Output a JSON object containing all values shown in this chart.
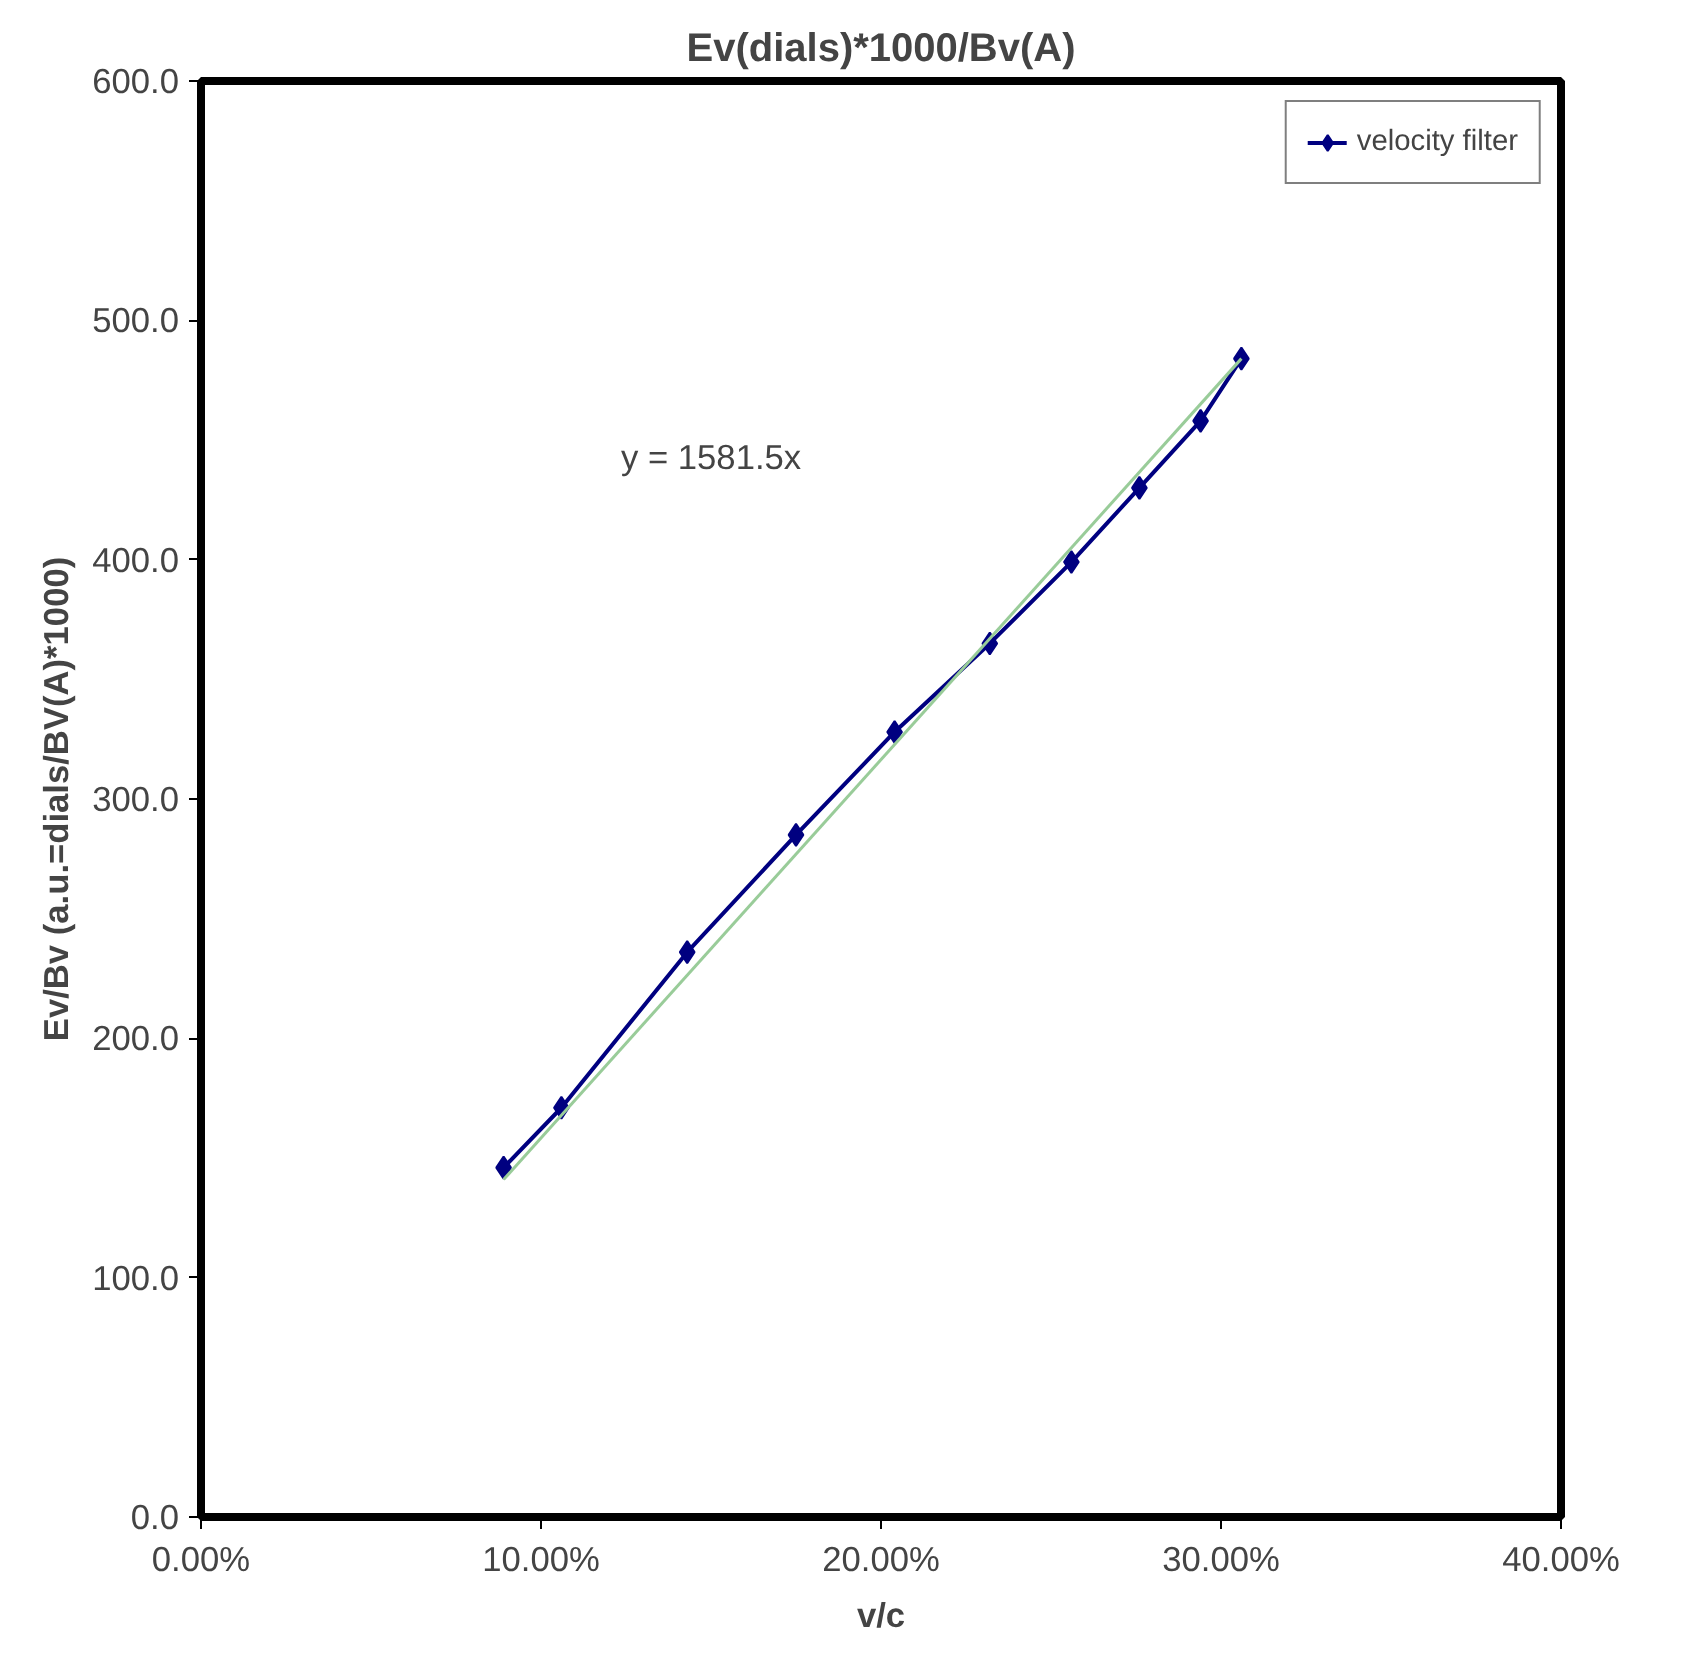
{
  "chart_data": {
    "type": "line",
    "title": "Ev(dials)*1000/Bv(A)",
    "xlabel": "v/c",
    "ylabel": "Ev/Bv (a.u.=dials/BV(A)*1000)",
    "x": [
      0.089,
      0.106,
      0.143,
      0.175,
      0.204,
      0.232,
      0.256,
      0.276,
      0.294,
      0.306
    ],
    "series": [
      {
        "name": "velocity filter",
        "color": "#000080",
        "values": [
          146,
          171,
          236,
          285,
          328,
          365,
          399,
          430,
          458,
          484
        ]
      },
      {
        "type": "line",
        "color": "#99cc99",
        "x": [
          0.089,
          0.306
        ],
        "values": [
          141,
          484
        ],
        "marker": "none"
      }
    ],
    "xlim": [
      0,
      0.4
    ],
    "ylim": [
      0,
      600
    ],
    "xticks": [
      {
        "value": 0,
        "label": "0.00%"
      },
      {
        "value": 0.1,
        "label": "10.00%"
      },
      {
        "value": 0.2,
        "label": "20.00%"
      },
      {
        "value": 0.3,
        "label": "30.00%"
      },
      {
        "value": 0.4,
        "label": "40.00%"
      }
    ],
    "yticks": [
      {
        "value": 0,
        "label": "0.0"
      },
      {
        "value": 100,
        "label": "100.0"
      },
      {
        "value": 200,
        "label": "200.0"
      },
      {
        "value": 300,
        "label": "300.0"
      },
      {
        "value": 400,
        "label": "400.0"
      },
      {
        "value": 500,
        "label": "500.0"
      },
      {
        "value": 600,
        "label": "600.0"
      }
    ],
    "annotations": [
      "y = 1581.5x"
    ],
    "grid": false,
    "legend": "top right",
    "marker": "diamond",
    "line_style": "solid"
  }
}
